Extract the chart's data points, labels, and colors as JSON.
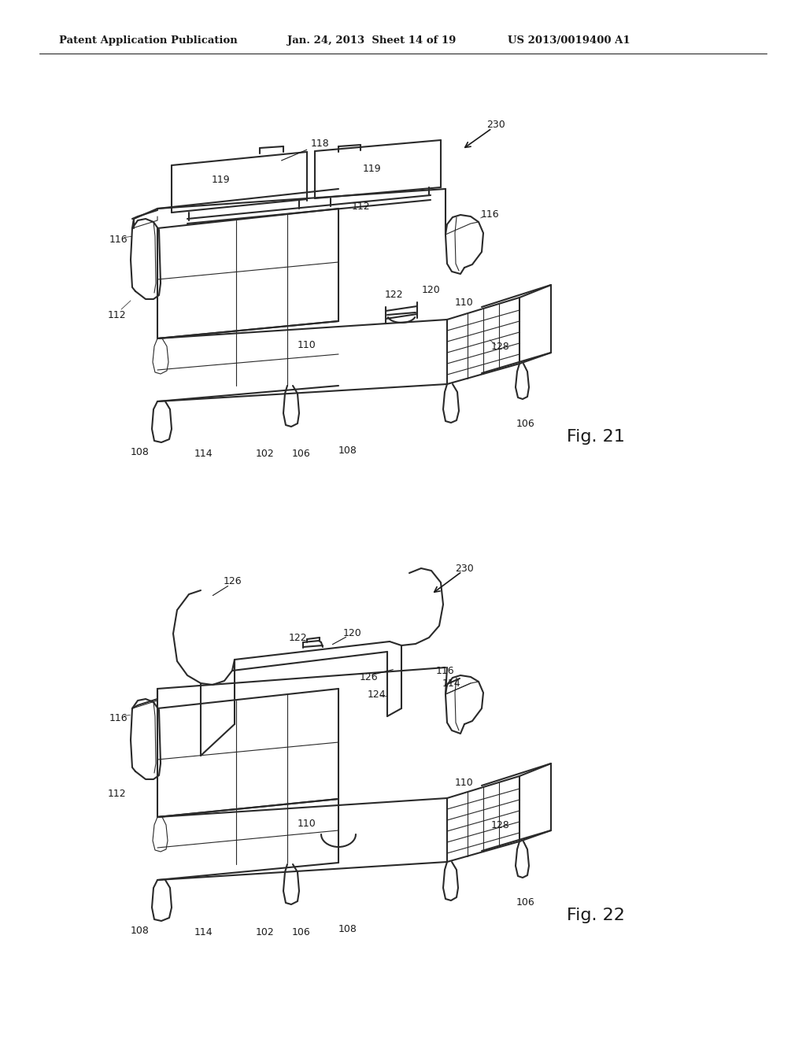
{
  "background_color": "#ffffff",
  "header_left": "Patent Application Publication",
  "header_center": "Jan. 24, 2013  Sheet 14 of 19",
  "header_right": "US 2013/0019400 A1",
  "fig21_label": "Fig. 21",
  "fig22_label": "Fig. 22",
  "line_color": "#2a2a2a",
  "text_color": "#1a1a1a",
  "header_fontsize": 9.5,
  "label_fontsize": 9,
  "fig_label_fontsize": 16,
  "lw_main": 1.5,
  "lw_thin": 0.8,
  "lw_thick": 2.0
}
